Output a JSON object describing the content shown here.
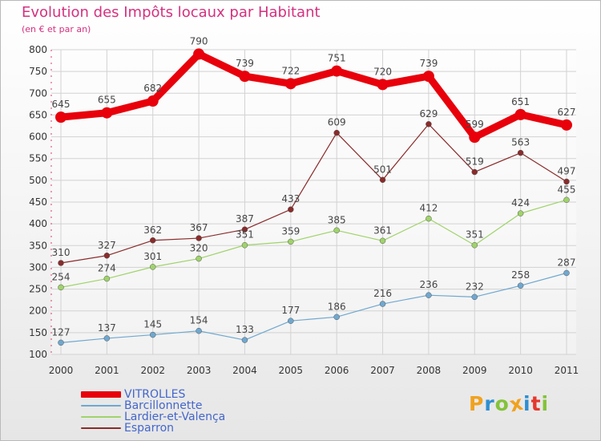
{
  "title": "Evolution des Impôts locaux par Habitant",
  "subtitle": "(en € et par an)",
  "logo": {
    "letters": [
      "P",
      "r",
      "o",
      "x",
      "i",
      "t",
      "i"
    ],
    "colors": [
      "#f0a21f",
      "#2e8fd1",
      "#84c33a",
      "#f0a21f",
      "#2e8fd1",
      "#e5382d",
      "#84c33a"
    ]
  },
  "chart_data": {
    "type": "line",
    "title": "Evolution des Impôts locaux par Habitant",
    "subtitle": "(en € et par an)",
    "xlabel": "",
    "ylabel": "",
    "x": [
      "2000",
      "2001",
      "2002",
      "2003",
      "2004",
      "2005",
      "2006",
      "2007",
      "2008",
      "2009",
      "2010",
      "2011"
    ],
    "ylim": [
      100,
      800
    ],
    "yticks": [
      100,
      150,
      200,
      250,
      300,
      350,
      400,
      450,
      500,
      550,
      600,
      650,
      700,
      750,
      800
    ],
    "grid": true,
    "legend_position": "bottom-left",
    "series": [
      {
        "name": "VITROLLES",
        "color": "#e8000b",
        "values": [
          645,
          655,
          682,
          790,
          739,
          722,
          751,
          720,
          739,
          599,
          651,
          627
        ]
      },
      {
        "name": "Barcillonnette",
        "color": "#6fa8d0",
        "values": [
          127,
          137,
          145,
          154,
          133,
          177,
          186,
          216,
          236,
          232,
          258,
          287
        ]
      },
      {
        "name": "Lardier-et-Valença",
        "color": "#9fd36a",
        "values": [
          254,
          274,
          301,
          320,
          351,
          359,
          385,
          361,
          412,
          351,
          424,
          455
        ]
      },
      {
        "name": "Esparron",
        "color": "#8a2b2b",
        "values": [
          310,
          327,
          362,
          367,
          387,
          433,
          609,
          501,
          629,
          519,
          563,
          497
        ]
      }
    ]
  }
}
